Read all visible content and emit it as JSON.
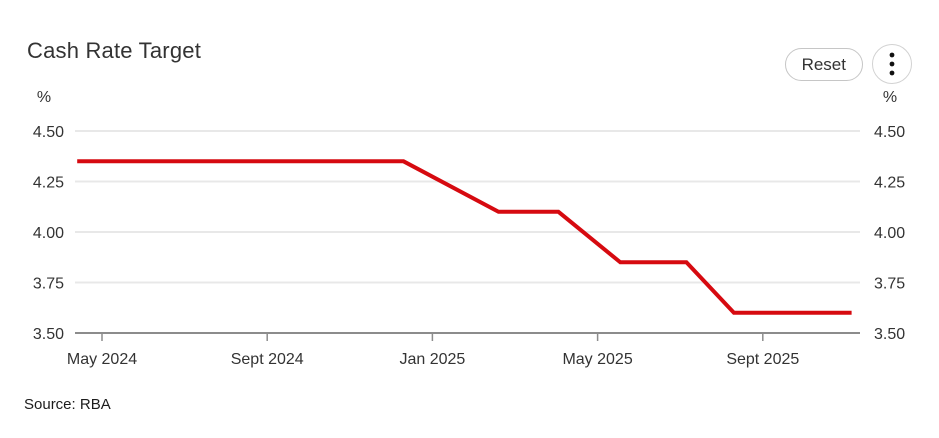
{
  "header": {
    "title": "Cash Rate Target"
  },
  "controls": {
    "reset_label": "Reset",
    "menu_icon": "kebab-menu-icon",
    "menu_dot_color": "#111111"
  },
  "footer": {
    "source": "Source: RBA"
  },
  "chart_data": {
    "type": "line",
    "title": "Cash Rate Target",
    "unit_label": "%",
    "ylim": [
      3.5,
      4.5
    ],
    "grid": true,
    "legend": false,
    "grid_color": "#e8e8e8",
    "axis_color": "#8c8c8c",
    "label_color": "#333333",
    "y_ticks": [
      {
        "v": 4.5,
        "label": "4.50"
      },
      {
        "v": 4.25,
        "label": "4.25"
      },
      {
        "v": 4.0,
        "label": "4.00"
      },
      {
        "v": 3.75,
        "label": "3.75"
      },
      {
        "v": 3.5,
        "label": "3.50"
      }
    ],
    "x_ticks": [
      {
        "m": 0,
        "label": "May 2024"
      },
      {
        "m": 4,
        "label": "Sept 2024"
      },
      {
        "m": 8,
        "label": "Jan 2025"
      },
      {
        "m": 12,
        "label": "May 2025"
      },
      {
        "m": 16,
        "label": "Sept 2025"
      }
    ],
    "series": [
      {
        "name": "Cash Rate Target",
        "color": "#d60a10",
        "points": [
          {
            "date": "Apr 2024",
            "m": -0.6,
            "v": 4.35
          },
          {
            "date": "Dec 2024",
            "m": 7.3,
            "v": 4.35
          },
          {
            "date": "Feb 2025",
            "m": 9.6,
            "v": 4.1
          },
          {
            "date": "Apr 2025",
            "m": 11.05,
            "v": 4.1
          },
          {
            "date": "May 2025",
            "m": 12.55,
            "v": 3.85
          },
          {
            "date": "Jul 2025",
            "m": 14.15,
            "v": 3.85
          },
          {
            "date": "Aug 2025",
            "m": 15.3,
            "v": 3.6
          },
          {
            "date": "Nov 2025",
            "m": 18.15,
            "v": 3.6
          }
        ]
      }
    ]
  }
}
